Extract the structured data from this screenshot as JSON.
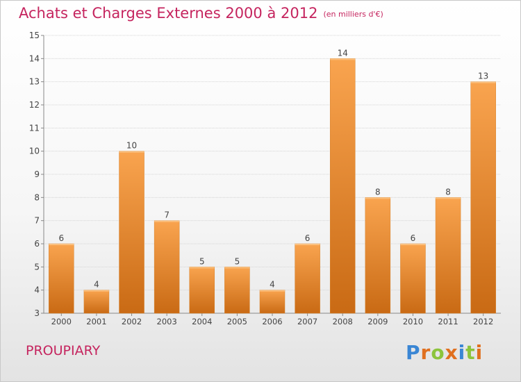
{
  "header": {
    "title": "Achats et Charges Externes 2000 à 2012",
    "unit": "(en milliers d'€)"
  },
  "footer": {
    "commune": "PROUPIARY",
    "logo": {
      "text": "Proxiti",
      "letter_colors": [
        "#3a86d4",
        "#e0701f",
        "#8cc43c",
        "#e0701f",
        "#3a86d4",
        "#8cc43c",
        "#e0701f"
      ]
    }
  },
  "chart_data": {
    "type": "bar",
    "categories": [
      "2000",
      "2001",
      "2002",
      "2003",
      "2004",
      "2005",
      "2006",
      "2007",
      "2008",
      "2009",
      "2010",
      "2011",
      "2012"
    ],
    "values": [
      6,
      4,
      10,
      7,
      5,
      5,
      4,
      6,
      14,
      8,
      6,
      8,
      13
    ],
    "ylim": [
      3,
      15
    ],
    "yticks": [
      3,
      4,
      5,
      6,
      7,
      8,
      9,
      10,
      11,
      12,
      13,
      14,
      15
    ],
    "grid": true,
    "bar_color": "#f0902e",
    "data_labels": true
  }
}
